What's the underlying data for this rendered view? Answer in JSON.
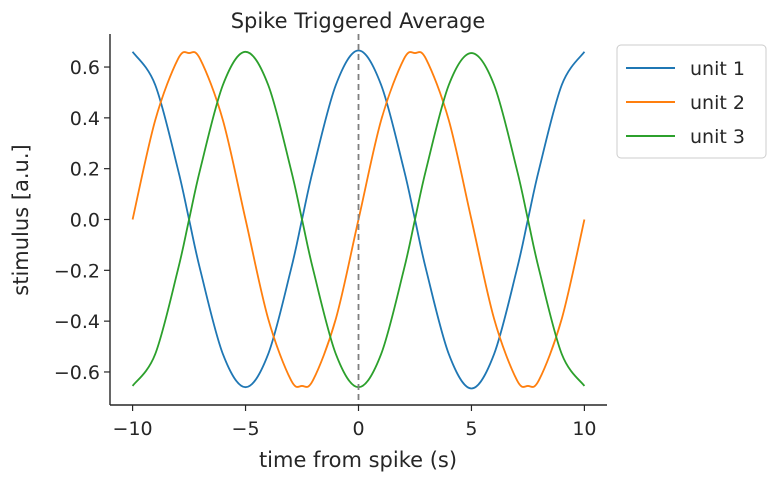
{
  "chart_data": {
    "type": "line",
    "title": "Spike Triggered Average",
    "xlabel": "time from spike (s)",
    "ylabel": "stimulus [a.u.]",
    "xlim": [
      -11,
      11
    ],
    "ylim": [
      -0.73,
      0.73
    ],
    "xticks": [
      -10,
      -5,
      0,
      5,
      10
    ],
    "xtick_labels": [
      "−10",
      "−5",
      "0",
      "5",
      "10"
    ],
    "yticks": [
      -0.6,
      -0.4,
      -0.2,
      0.0,
      0.2,
      0.4,
      0.6
    ],
    "ytick_labels": [
      "−0.6",
      "−0.4",
      "−0.2",
      "0.0",
      "0.2",
      "0.4",
      "0.6"
    ],
    "vline": {
      "x": 0,
      "style": "dashed",
      "color": "#808080"
    },
    "grid": false,
    "legend_position": "outside upper right",
    "x": [
      -10,
      -9,
      -8,
      -7.5,
      -7,
      -6,
      -5,
      -4,
      -3,
      -2.5,
      -2,
      -1,
      0,
      1,
      2,
      2.5,
      3,
      4,
      5,
      6,
      7,
      7.5,
      8,
      9,
      10
    ],
    "series": [
      {
        "name": "unit 1",
        "color": "#1f77b4",
        "values": [
          0.66,
          0.53,
          0.2,
          0.0,
          -0.2,
          -0.53,
          -0.66,
          -0.53,
          -0.2,
          0.0,
          0.2,
          0.53,
          0.665,
          0.53,
          0.2,
          0.0,
          -0.2,
          -0.53,
          -0.665,
          -0.53,
          -0.2,
          0.0,
          0.2,
          0.53,
          0.66
        ]
      },
      {
        "name": "unit 2",
        "color": "#ff7f0e",
        "values": [
          0.0,
          0.39,
          0.63,
          0.655,
          0.63,
          0.39,
          0.0,
          -0.39,
          -0.63,
          -0.655,
          -0.63,
          -0.39,
          0.0,
          0.39,
          0.63,
          0.655,
          0.63,
          0.39,
          0.0,
          -0.39,
          -0.63,
          -0.655,
          -0.63,
          -0.39,
          0.0
        ]
      },
      {
        "name": "unit 3",
        "color": "#2ca02c",
        "values": [
          -0.655,
          -0.53,
          -0.2,
          0.0,
          0.2,
          0.53,
          0.66,
          0.53,
          0.2,
          0.0,
          -0.2,
          -0.53,
          -0.66,
          -0.53,
          -0.2,
          0.0,
          0.2,
          0.53,
          0.655,
          0.53,
          0.2,
          0.0,
          -0.2,
          -0.53,
          -0.655
        ]
      }
    ]
  }
}
